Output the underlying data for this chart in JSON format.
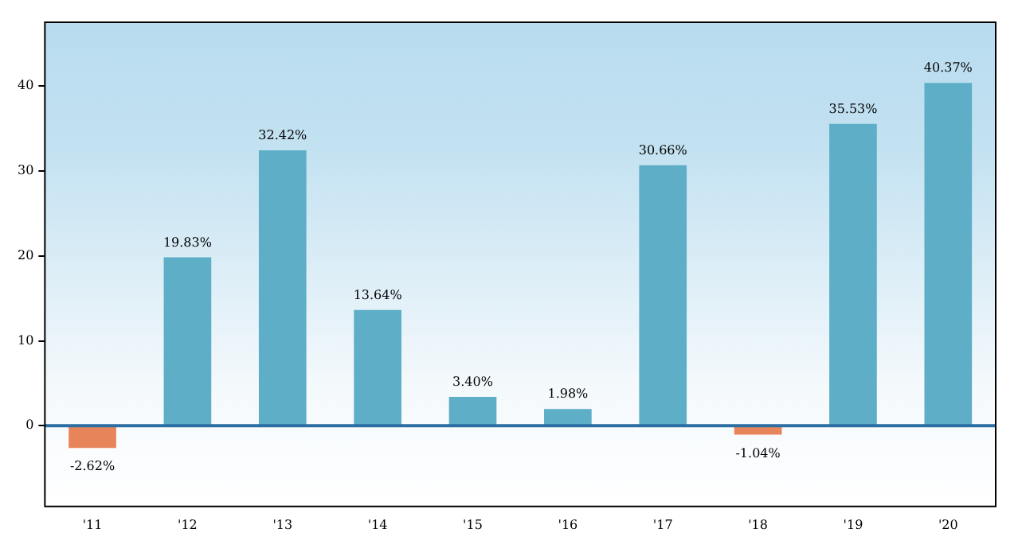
{
  "chart_data": {
    "type": "bar",
    "categories": [
      "'11",
      "'12",
      "'13",
      "'14",
      "'15",
      "'16",
      "'17",
      "'18",
      "'19",
      "'20"
    ],
    "values": [
      -2.62,
      19.83,
      32.42,
      13.64,
      3.4,
      1.98,
      30.66,
      -1.04,
      35.53,
      40.37
    ],
    "colors": [
      "#e8845a",
      "#5eaec8",
      "#5eaec8",
      "#5eaec8",
      "#5eaec8",
      "#5eaec8",
      "#5eaec8",
      "#e8845a",
      "#5eaec8",
      "#5eaec8"
    ],
    "value_labels": [
      "-2.62%",
      "19.83%",
      "32.42%",
      "13.64%",
      "3.40%",
      "1.98%",
      "30.66%",
      "-1.04%",
      "35.53%",
      "40.37%"
    ],
    "ylim": [
      -9.5,
      47.5
    ],
    "yticks": [
      0,
      10,
      20,
      30,
      40
    ],
    "ref_lines": [
      {
        "axis": "y",
        "value": 0,
        "color": "#2b6ea3"
      }
    ],
    "grid": false,
    "legend": false
  }
}
